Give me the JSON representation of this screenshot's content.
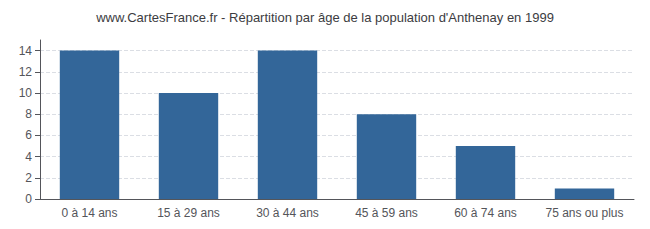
{
  "chart_data": {
    "type": "bar",
    "title": "www.CartesFrance.fr - Répartition par âge de la population d'Anthenay en 1999",
    "categories": [
      "0 à 14 ans",
      "15 à 29 ans",
      "30 à 44 ans",
      "45 à 59 ans",
      "60 à 74 ans",
      "75 ans ou plus"
    ],
    "values": [
      14,
      10,
      14,
      8,
      5,
      1
    ],
    "color": "#336699",
    "ylim": [
      0,
      15
    ],
    "yticks": [
      0,
      2,
      4,
      6,
      8,
      10,
      12,
      14
    ],
    "grid": true
  }
}
